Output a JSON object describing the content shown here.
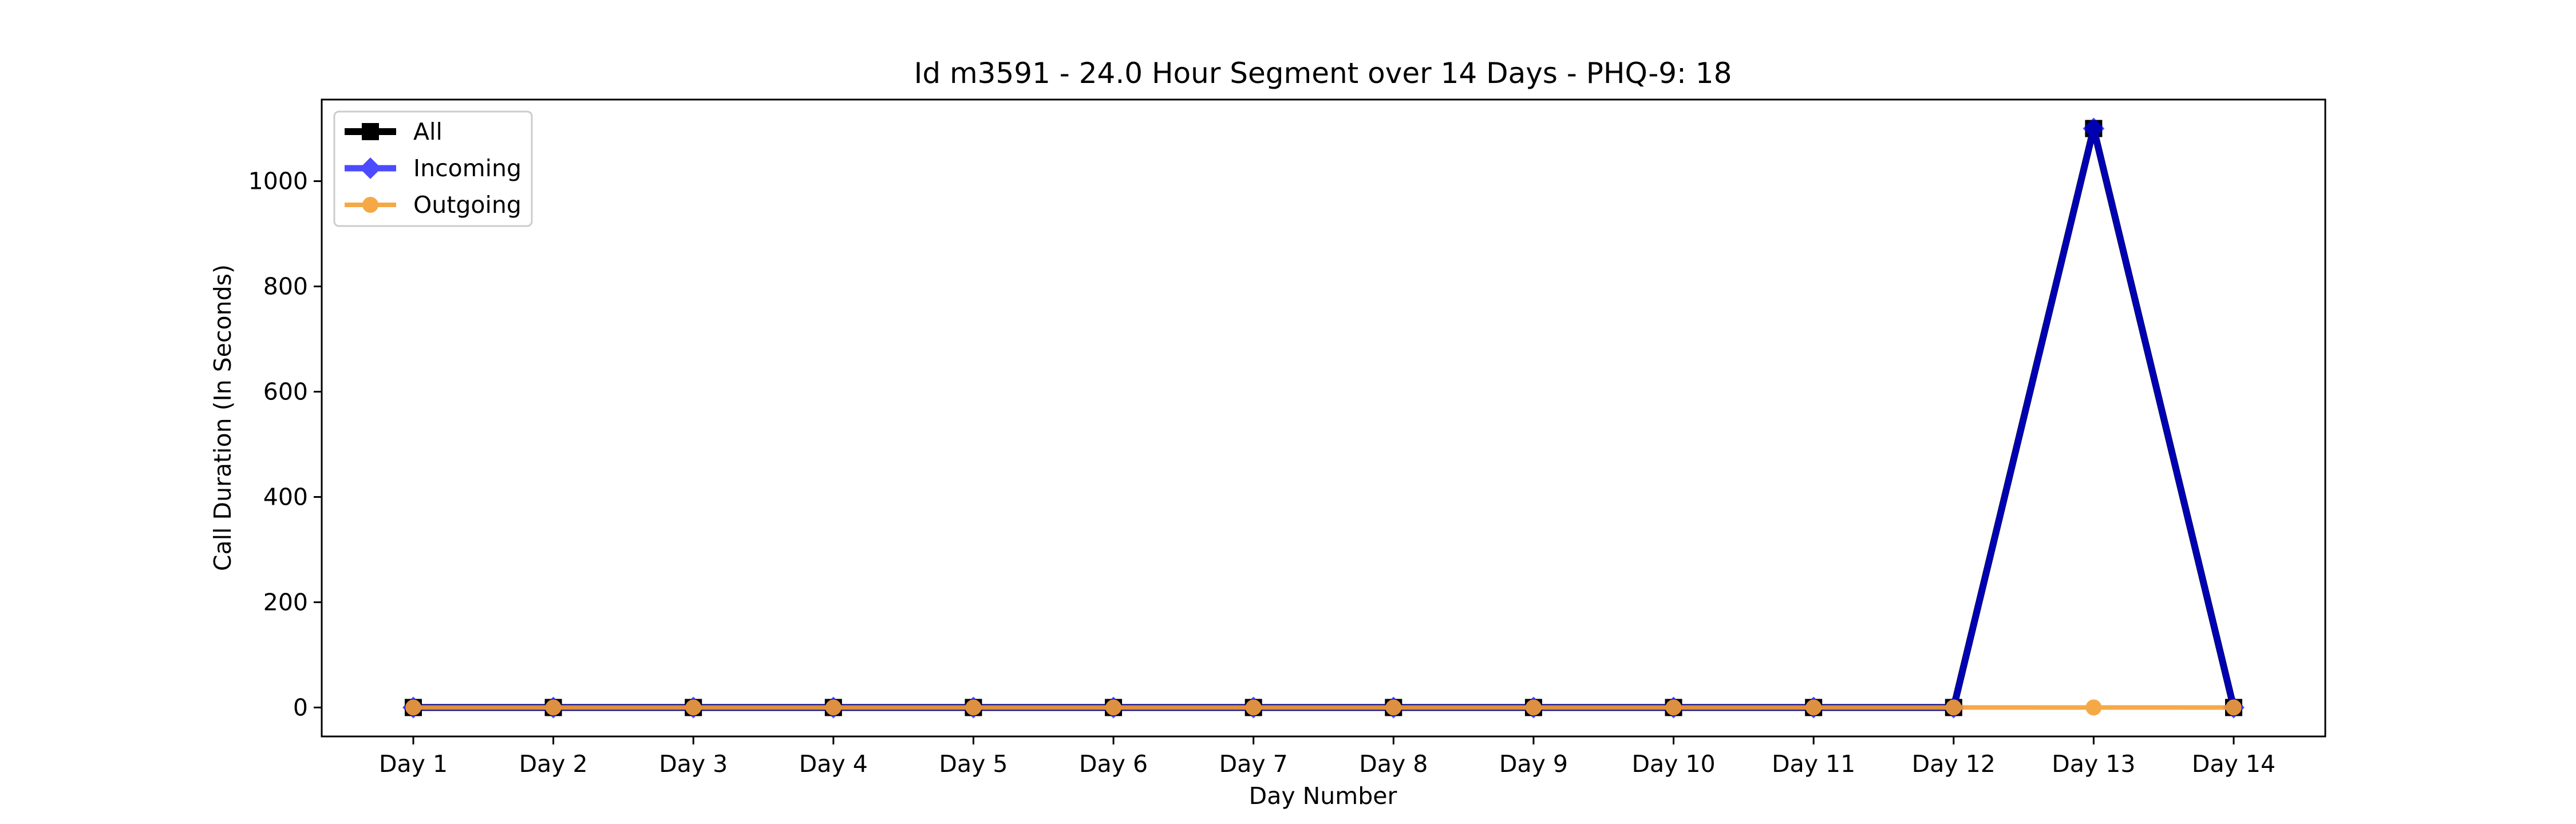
{
  "chart_data": {
    "type": "line",
    "title": "Id m3591 - 24.0 Hour Segment over 14 Days - PHQ-9: 18",
    "xlabel": "Day Number",
    "ylabel": "Call Duration (In Seconds)",
    "categories": [
      "Day 1",
      "Day 2",
      "Day 3",
      "Day 4",
      "Day 5",
      "Day 6",
      "Day 7",
      "Day 8",
      "Day 9",
      "Day 10",
      "Day 11",
      "Day 12",
      "Day 13",
      "Day 14"
    ],
    "ylim": [
      -55,
      1155
    ],
    "yticks": [
      0,
      200,
      400,
      600,
      800,
      1000
    ],
    "grid": false,
    "legend_position": "top-left",
    "series": [
      {
        "name": "All",
        "values": [
          0,
          0,
          0,
          0,
          0,
          0,
          0,
          0,
          0,
          0,
          0,
          0,
          1100,
          0
        ],
        "color": "#000000",
        "marker": "square"
      },
      {
        "name": "Incoming",
        "values": [
          0,
          0,
          0,
          0,
          0,
          0,
          0,
          0,
          0,
          0,
          0,
          0,
          1100,
          0
        ],
        "color": "#0000ff",
        "marker": "diamond"
      },
      {
        "name": "Outgoing",
        "values": [
          0,
          0,
          0,
          0,
          0,
          0,
          0,
          0,
          0,
          0,
          0,
          0,
          0,
          0
        ],
        "color": "#f5a033",
        "marker": "circle"
      }
    ]
  }
}
